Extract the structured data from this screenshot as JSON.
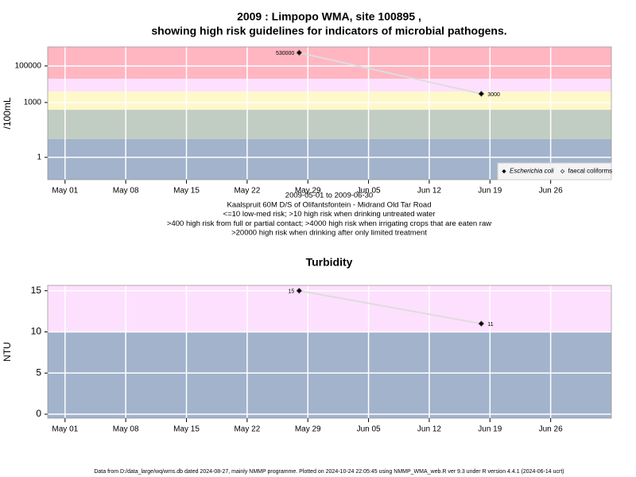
{
  "chart_data": [
    {
      "type": "line",
      "title": [
        "2009 : Limpopo WMA, site 100895 ,",
        "showing high risk guidelines for indicators of microbial pathogens."
      ],
      "notes": [
        "2009-05-01 to 2009-06-30",
        "Kaalspruit 60M D/S of Olifantsfontein - Midrand Old Tar Road",
        "<=10 low-med risk; >10 high risk when drinking untreated water",
        ">400 high risk from full or partial contact; >4000 high risk when irrigating crops that are eaten raw",
        ">20000 high risk when drinking after only limited treatment"
      ],
      "ylabel": "/100mL",
      "x": [
        "2009-05-28",
        "2009-06-18"
      ],
      "series": [
        {
          "name": "Escherichia coli",
          "color": "#000000",
          "values": [
            530000,
            3000
          ]
        },
        {
          "name": "faecal coliforms",
          "color": "#ffffff",
          "values": [
            null,
            null
          ]
        }
      ],
      "line_color": "#dddddd",
      "yscale": "log",
      "ylim": [
        0.06,
        1100000
      ],
      "yticks": [
        1,
        1000,
        100000
      ],
      "xlim": [
        "2009-04-29",
        "2009-07-03"
      ],
      "xticks": [
        {
          "value": "2009-05-01",
          "label": "May 01"
        },
        {
          "value": "2009-05-08",
          "label": "May 08"
        },
        {
          "value": "2009-05-15",
          "label": "May 15"
        },
        {
          "value": "2009-05-22",
          "label": "May 22"
        },
        {
          "value": "2009-05-29",
          "label": "May 29"
        },
        {
          "value": "2009-06-05",
          "label": "Jun 05"
        },
        {
          "value": "2009-06-12",
          "label": "Jun 12"
        },
        {
          "value": "2009-06-19",
          "label": "Jun 19"
        },
        {
          "value": "2009-06-26",
          "label": "Jun 26"
        }
      ],
      "guidelines": [
        10,
        400,
        4000,
        20000
      ],
      "band_colors": [
        "#a2b3cb",
        "#c1cdc2",
        "#fef8cb",
        "#fde0fe",
        "#ffb6c1"
      ],
      "grid": true,
      "legend": "bottom-right"
    },
    {
      "type": "line",
      "title": [
        "Turbidity"
      ],
      "ylabel": "NTU",
      "x": [
        "2009-05-28",
        "2009-06-18"
      ],
      "values": [
        15,
        11
      ],
      "color": "#000000",
      "line_color": "#dddddd",
      "yscale": "linear",
      "ylim": [
        -0.48,
        15.65
      ],
      "yticks": [
        0,
        5,
        10,
        15
      ],
      "xlim": [
        "2009-04-29",
        "2009-07-03"
      ],
      "xticks": [
        {
          "value": "2009-05-01",
          "label": "May 01"
        },
        {
          "value": "2009-05-08",
          "label": "May 08"
        },
        {
          "value": "2009-05-15",
          "label": "May 15"
        },
        {
          "value": "2009-05-22",
          "label": "May 22"
        },
        {
          "value": "2009-05-29",
          "label": "May 29"
        },
        {
          "value": "2009-06-05",
          "label": "Jun 05"
        },
        {
          "value": "2009-06-12",
          "label": "Jun 12"
        },
        {
          "value": "2009-06-19",
          "label": "Jun 19"
        },
        {
          "value": "2009-06-26",
          "label": "Jun 26"
        }
      ],
      "guidelines": [
        10
      ],
      "band_colors": [
        "#a2b3cb",
        "#fde0fe"
      ],
      "grid": true
    }
  ],
  "footer": "Data from D:/data_large/wq/wms.db dated 2024-08-27, mainly NMMP programme. Plotted on 2024-10-24 22:05:45 using NMMP_WMA_web.R ver 9.3 under R version 4.4.1 (2024-06-14 ucrt)"
}
